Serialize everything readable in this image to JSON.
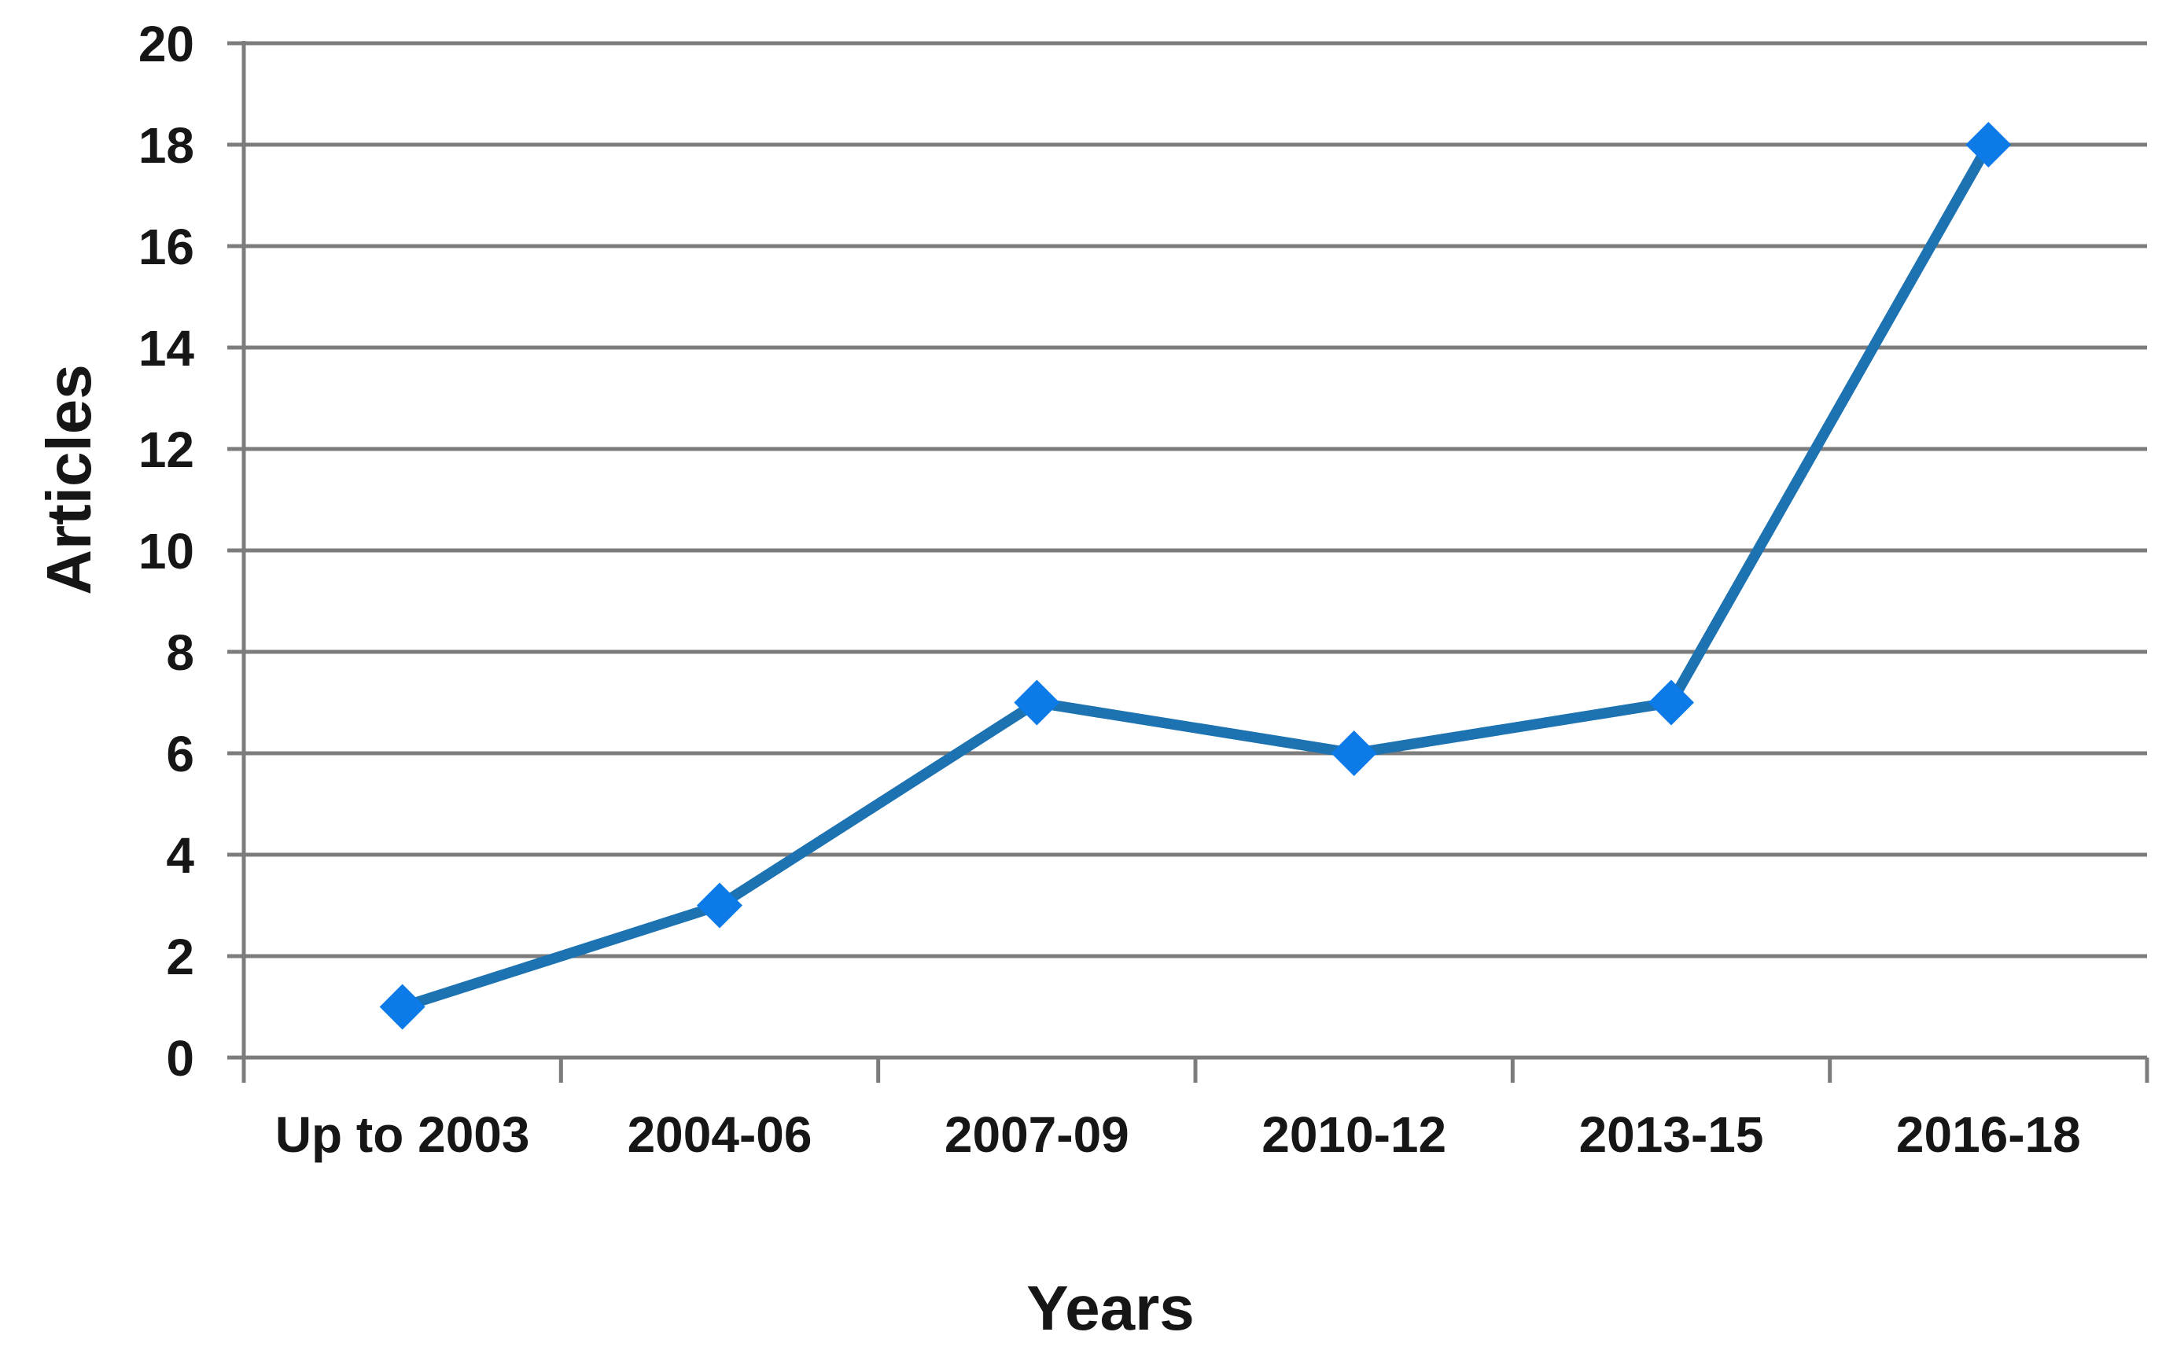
{
  "chart_data": {
    "type": "line",
    "title": "",
    "categories": [
      "Up to 2003",
      "2004-06",
      "2007-09",
      "2010-12",
      "2013-15",
      "2016-18"
    ],
    "series": [
      {
        "name": "Articles",
        "values": [
          1,
          3,
          7,
          6,
          7,
          18
        ]
      }
    ],
    "xlabel": "Years",
    "ylabel": "Articles",
    "ylim": [
      0,
      20
    ],
    "yticks": [
      0,
      2,
      4,
      6,
      8,
      10,
      12,
      14,
      16,
      18,
      20
    ],
    "grid": "horizontal-only",
    "legend": "none",
    "marker": "diamond",
    "colors": {
      "line": "#1D73B1",
      "marker": "#0C7BE8",
      "grid": "#7C7C7C",
      "text": "#161616",
      "background": "#FFFFFF"
    }
  }
}
